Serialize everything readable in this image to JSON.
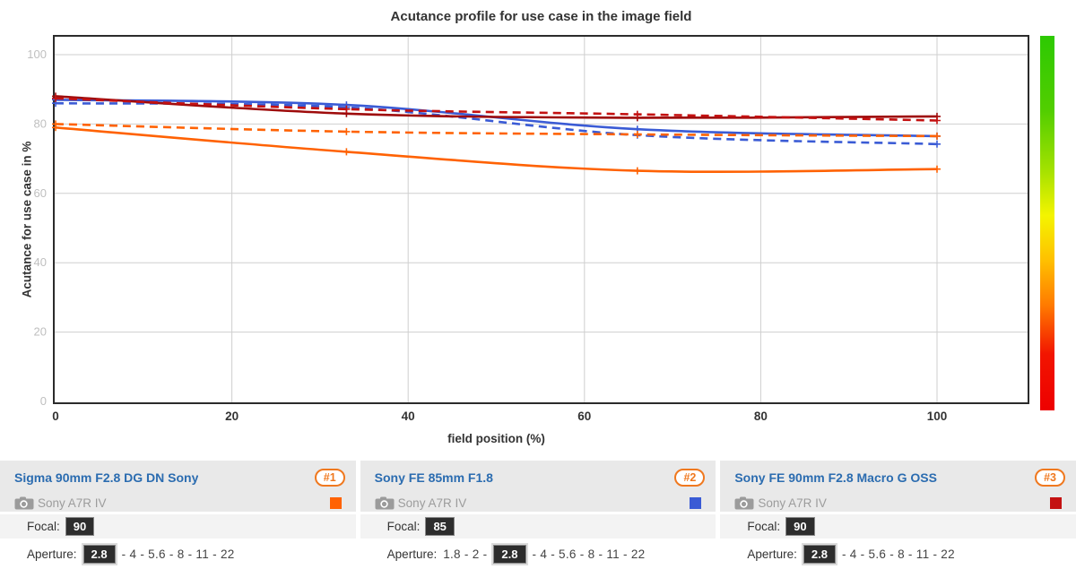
{
  "chart": {
    "title": "Acutance profile for use case in the image field",
    "xlabel": "field position (%)",
    "ylabel": "Acutance for use case in %"
  },
  "chart_data": {
    "type": "line",
    "title": "Acutance profile for use case in the image field",
    "xlabel": "field position (%)",
    "ylabel": "Acutance for use case in %",
    "x": [
      0,
      33,
      66,
      100
    ],
    "x_ticks": [
      0,
      20,
      40,
      60,
      80,
      100
    ],
    "y_ticks": [
      0,
      20,
      40,
      60,
      80,
      100
    ],
    "xlim": [
      0,
      110
    ],
    "ylim": [
      0,
      105.5
    ],
    "grid": true,
    "legend_position": "bottom-panels",
    "series": [
      {
        "name": "Sigma 90mm F2.8 DG DN Sony (solid)",
        "color": "#ff6203",
        "dash": false,
        "values": [
          79,
          72,
          66.5,
          67
        ]
      },
      {
        "name": "Sigma 90mm F2.8 DG DN Sony (dashed)",
        "color": "#ff6203",
        "dash": true,
        "values": [
          80,
          77.8,
          77,
          76.5
        ]
      },
      {
        "name": "Sony FE 85mm F1.8 (solid)",
        "color": "#3a5bd5",
        "dash": false,
        "values": [
          87,
          85.5,
          78.5,
          76.5
        ]
      },
      {
        "name": "Sony FE 85mm F1.8 (dashed)",
        "color": "#3a5bd5",
        "dash": true,
        "values": [
          86,
          84.8,
          76.8,
          74.2
        ]
      },
      {
        "name": "Sony FE 90mm F2.8 Macro G OSS (solid)",
        "color": "#9e0b0b",
        "dash": false,
        "values": [
          88,
          83,
          81.8,
          82.2
        ]
      },
      {
        "name": "Sony FE 90mm F2.8 Macro G OSS (dashed)",
        "color": "#c41111",
        "dash": true,
        "values": [
          87.4,
          84.3,
          82.8,
          81
        ]
      }
    ]
  },
  "colors": {
    "grid": "#cfcfcf",
    "plot_border": "#2b2b2b",
    "x_tick_label": "#333333",
    "y_tick_label": "#bfbfbf",
    "accent_orange": "#f0781e",
    "link_blue": "#2b6cb0"
  },
  "gradient_bar": {
    "stops": [
      [
        "#2dc902",
        0
      ],
      [
        "#52ce00",
        20
      ],
      [
        "#9fe000",
        35
      ],
      [
        "#f4f400",
        48
      ],
      [
        "#ffc000",
        60
      ],
      [
        "#ff7a00",
        72
      ],
      [
        "#f21500",
        85
      ],
      [
        "#ed0000",
        100
      ]
    ]
  },
  "lenses": [
    {
      "name": "Sigma 90mm F2.8 DG DN Sony",
      "rank": "#1",
      "camera": "Sony A7R IV",
      "swatch": "#ff6203",
      "focal_label": "Focal:",
      "focal": "90",
      "aperture_label": "Aperture:",
      "aperture_prefix": "",
      "aperture_selected": "2.8",
      "aperture_suffix": "- 4 - 5.6 - 8 - 11 - 22"
    },
    {
      "name": "Sony FE 85mm F1.8",
      "rank": "#2",
      "camera": "Sony A7R IV",
      "swatch": "#3a5bd5",
      "focal_label": "Focal:",
      "focal": "85",
      "aperture_label": "Aperture:",
      "aperture_prefix": "1.8 - 2 -",
      "aperture_selected": "2.8",
      "aperture_suffix": "- 4 - 5.6 - 8 - 11 - 22"
    },
    {
      "name": "Sony FE 90mm F2.8 Macro G OSS",
      "rank": "#3",
      "camera": "Sony A7R IV",
      "swatch": "#c41111",
      "focal_label": "Focal:",
      "focal": "90",
      "aperture_label": "Aperture:",
      "aperture_prefix": "",
      "aperture_selected": "2.8",
      "aperture_suffix": "- 4 - 5.6 - 8 - 11 - 22"
    }
  ]
}
